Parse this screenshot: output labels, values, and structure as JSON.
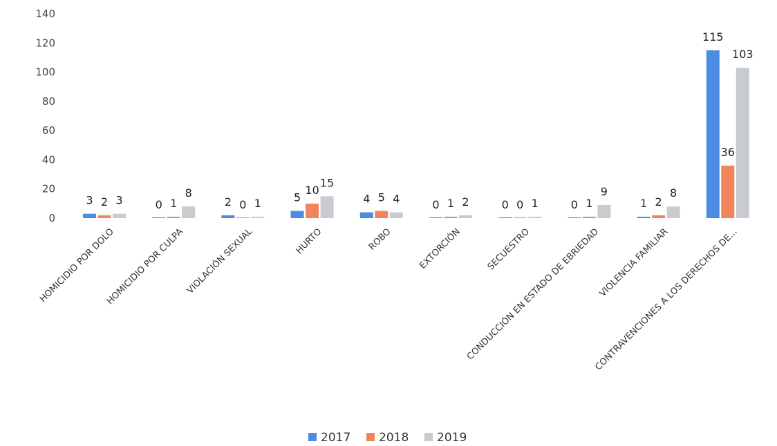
{
  "chart_data": {
    "type": "bar",
    "categories": [
      "HOMICIDIO POR DOLO",
      "HOMICIDIO POR CULPA",
      "VIOLACIÓN SEXUAL",
      "HURTO",
      "ROBO",
      "EXTORCIÓN",
      "SECUESTRO",
      "CONDUCCIÓN EN ESTADO DE EBRIEDAD",
      "VIOLENCIA FAMILIAR",
      "CONTRAVENCIONES A LOS DERECHOS DE..."
    ],
    "series": [
      {
        "name": "2017",
        "color": "#4a8de0",
        "values": [
          3,
          0,
          2,
          5,
          4,
          0,
          0,
          0,
          1,
          115
        ]
      },
      {
        "name": "2018",
        "color": "#f0855c",
        "values": [
          2,
          1,
          0,
          10,
          5,
          1,
          0,
          1,
          2,
          36
        ]
      },
      {
        "name": "2019",
        "color": "#c8cbd0",
        "values": [
          3,
          8,
          1,
          15,
          4,
          2,
          1,
          9,
          8,
          103
        ]
      }
    ],
    "yticks": [
      "140",
      "120",
      "100",
      "80",
      "60",
      "40",
      "20",
      "0"
    ],
    "ylim": [
      0,
      140
    ],
    "grid": false,
    "legend": "bottom-center"
  }
}
